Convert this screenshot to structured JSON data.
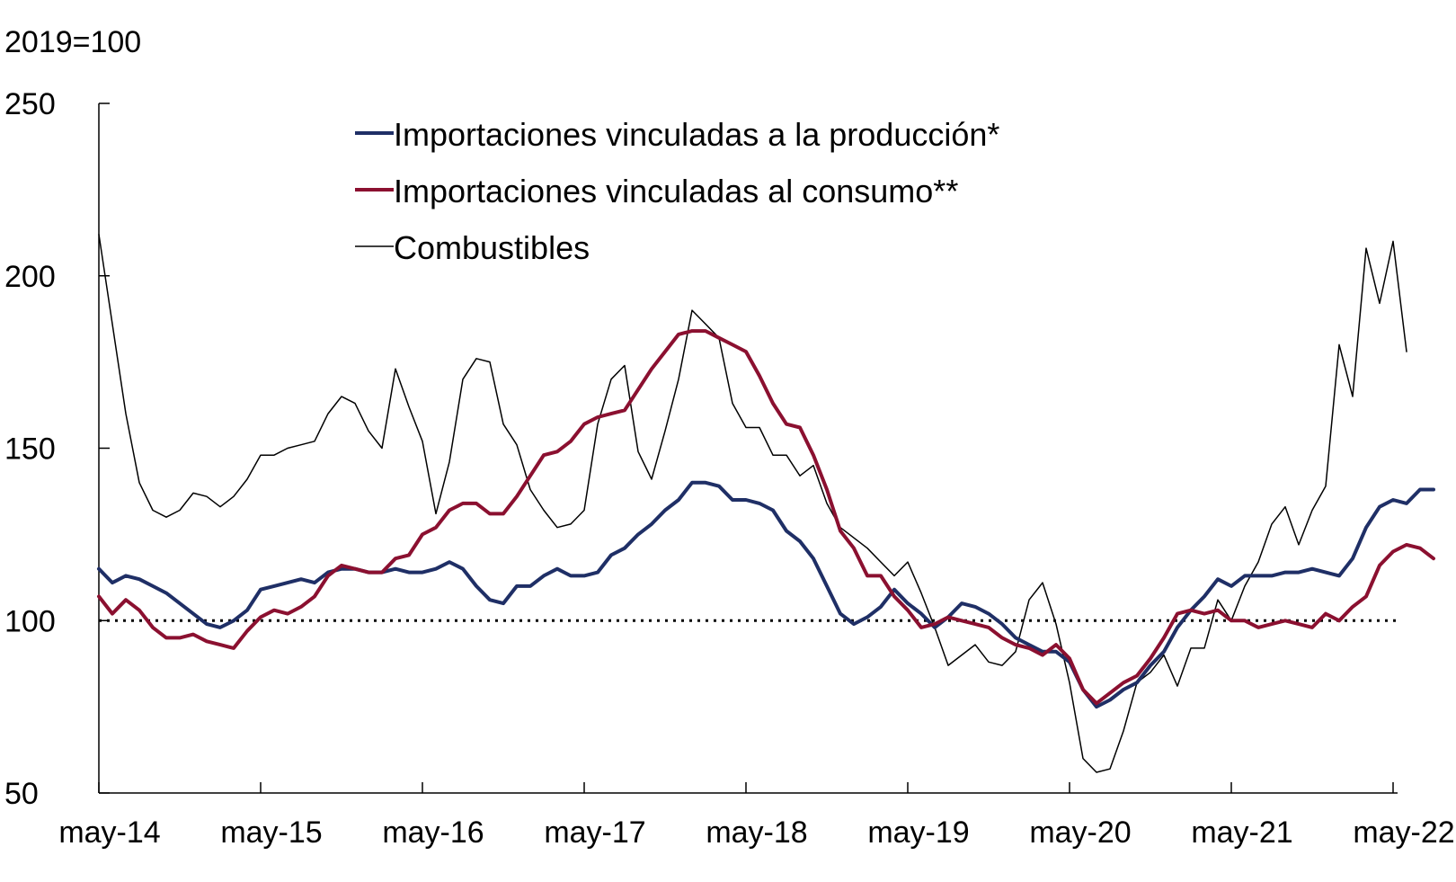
{
  "chart_data": {
    "type": "line",
    "unit_label": "2019=100",
    "ylim": [
      50,
      250
    ],
    "yticks": [
      50,
      100,
      150,
      200,
      250
    ],
    "x_start": "2014-05",
    "x_end": "2022-05",
    "xticks": [
      "may-14",
      "may-15",
      "may-16",
      "may-17",
      "may-18",
      "may-19",
      "may-20",
      "may-21",
      "may-22"
    ],
    "reference_line": {
      "value": 100,
      "style": "dotted"
    },
    "grid": false,
    "legend_placement": "top-center",
    "series": [
      {
        "name": "Importaciones vinculadas a la producción*",
        "color": "#1f2f66",
        "points": [
          [
            "2014-05",
            115
          ],
          [
            "2014-06",
            111
          ],
          [
            "2014-07",
            113
          ],
          [
            "2014-08",
            112
          ],
          [
            "2014-09",
            110
          ],
          [
            "2014-10",
            108
          ],
          [
            "2014-11",
            105
          ],
          [
            "2014-12",
            102
          ],
          [
            "2015-01",
            99
          ],
          [
            "2015-02",
            98
          ],
          [
            "2015-03",
            100
          ],
          [
            "2015-04",
            103
          ],
          [
            "2015-05",
            109
          ],
          [
            "2015-06",
            110
          ],
          [
            "2015-07",
            111
          ],
          [
            "2015-08",
            112
          ],
          [
            "2015-09",
            111
          ],
          [
            "2015-10",
            114
          ],
          [
            "2015-11",
            115
          ],
          [
            "2015-12",
            115
          ],
          [
            "2016-01",
            114
          ],
          [
            "2016-02",
            114
          ],
          [
            "2016-03",
            115
          ],
          [
            "2016-04",
            114
          ],
          [
            "2016-05",
            114
          ],
          [
            "2016-06",
            115
          ],
          [
            "2016-07",
            117
          ],
          [
            "2016-08",
            115
          ],
          [
            "2016-09",
            110
          ],
          [
            "2016-10",
            106
          ],
          [
            "2016-11",
            105
          ],
          [
            "2016-12",
            110
          ],
          [
            "2017-01",
            110
          ],
          [
            "2017-02",
            113
          ],
          [
            "2017-03",
            115
          ],
          [
            "2017-04",
            113
          ],
          [
            "2017-05",
            113
          ],
          [
            "2017-06",
            114
          ],
          [
            "2017-07",
            119
          ],
          [
            "2017-08",
            121
          ],
          [
            "2017-09",
            125
          ],
          [
            "2017-10",
            128
          ],
          [
            "2017-11",
            132
          ],
          [
            "2017-12",
            135
          ],
          [
            "2018-01",
            140
          ],
          [
            "2018-02",
            140
          ],
          [
            "2018-03",
            139
          ],
          [
            "2018-04",
            135
          ],
          [
            "2018-05",
            135
          ],
          [
            "2018-06",
            134
          ],
          [
            "2018-07",
            132
          ],
          [
            "2018-08",
            126
          ],
          [
            "2018-09",
            123
          ],
          [
            "2018-10",
            118
          ],
          [
            "2018-11",
            110
          ],
          [
            "2018-12",
            102
          ],
          [
            "2019-01",
            99
          ],
          [
            "2019-02",
            101
          ],
          [
            "2019-03",
            104
          ],
          [
            "2019-04",
            109
          ],
          [
            "2019-05",
            105
          ],
          [
            "2019-06",
            102
          ],
          [
            "2019-07",
            98
          ],
          [
            "2019-08",
            101
          ],
          [
            "2019-09",
            105
          ],
          [
            "2019-10",
            104
          ],
          [
            "2019-11",
            102
          ],
          [
            "2019-12",
            99
          ],
          [
            "2020-01",
            95
          ],
          [
            "2020-02",
            93
          ],
          [
            "2020-03",
            91
          ],
          [
            "2020-04",
            91
          ],
          [
            "2020-05",
            88
          ],
          [
            "2020-06",
            80
          ],
          [
            "2020-07",
            75
          ],
          [
            "2020-08",
            77
          ],
          [
            "2020-09",
            80
          ],
          [
            "2020-10",
            82
          ],
          [
            "2020-11",
            87
          ],
          [
            "2020-12",
            91
          ],
          [
            "2021-01",
            98
          ],
          [
            "2021-02",
            103
          ],
          [
            "2021-03",
            107
          ],
          [
            "2021-04",
            112
          ],
          [
            "2021-05",
            110
          ],
          [
            "2021-06",
            113
          ],
          [
            "2021-07",
            113
          ],
          [
            "2021-08",
            113
          ],
          [
            "2021-09",
            114
          ],
          [
            "2021-10",
            114
          ],
          [
            "2021-11",
            115
          ],
          [
            "2021-12",
            114
          ],
          [
            "2022-01",
            113
          ],
          [
            "2022-02",
            118
          ],
          [
            "2022-03",
            127
          ],
          [
            "2022-04",
            133
          ],
          [
            "2022-05",
            135
          ],
          [
            "2022-06",
            134
          ],
          [
            "2022-07",
            138
          ],
          [
            "2022-08",
            138
          ]
        ]
      },
      {
        "name": "Importaciones vinculadas al consumo**",
        "color": "#8b1030",
        "points": [
          [
            "2014-05",
            107
          ],
          [
            "2014-06",
            102
          ],
          [
            "2014-07",
            106
          ],
          [
            "2014-08",
            103
          ],
          [
            "2014-09",
            98
          ],
          [
            "2014-10",
            95
          ],
          [
            "2014-11",
            95
          ],
          [
            "2014-12",
            96
          ],
          [
            "2015-01",
            94
          ],
          [
            "2015-02",
            93
          ],
          [
            "2015-03",
            92
          ],
          [
            "2015-04",
            97
          ],
          [
            "2015-05",
            101
          ],
          [
            "2015-06",
            103
          ],
          [
            "2015-07",
            102
          ],
          [
            "2015-08",
            104
          ],
          [
            "2015-09",
            107
          ],
          [
            "2015-10",
            113
          ],
          [
            "2015-11",
            116
          ],
          [
            "2015-12",
            115
          ],
          [
            "2016-01",
            114
          ],
          [
            "2016-02",
            114
          ],
          [
            "2016-03",
            118
          ],
          [
            "2016-04",
            119
          ],
          [
            "2016-05",
            125
          ],
          [
            "2016-06",
            127
          ],
          [
            "2016-07",
            132
          ],
          [
            "2016-08",
            134
          ],
          [
            "2016-09",
            134
          ],
          [
            "2016-10",
            131
          ],
          [
            "2016-11",
            131
          ],
          [
            "2016-12",
            136
          ],
          [
            "2017-01",
            142
          ],
          [
            "2017-02",
            148
          ],
          [
            "2017-03",
            149
          ],
          [
            "2017-04",
            152
          ],
          [
            "2017-05",
            157
          ],
          [
            "2017-06",
            159
          ],
          [
            "2017-07",
            160
          ],
          [
            "2017-08",
            161
          ],
          [
            "2017-09",
            167
          ],
          [
            "2017-10",
            173
          ],
          [
            "2017-11",
            178
          ],
          [
            "2017-12",
            183
          ],
          [
            "2018-01",
            184
          ],
          [
            "2018-02",
            184
          ],
          [
            "2018-03",
            182
          ],
          [
            "2018-04",
            180
          ],
          [
            "2018-05",
            178
          ],
          [
            "2018-06",
            171
          ],
          [
            "2018-07",
            163
          ],
          [
            "2018-08",
            157
          ],
          [
            "2018-09",
            156
          ],
          [
            "2018-10",
            148
          ],
          [
            "2018-11",
            138
          ],
          [
            "2018-12",
            126
          ],
          [
            "2019-01",
            121
          ],
          [
            "2019-02",
            113
          ],
          [
            "2019-03",
            113
          ],
          [
            "2019-04",
            107
          ],
          [
            "2019-05",
            103
          ],
          [
            "2019-06",
            98
          ],
          [
            "2019-07",
            99
          ],
          [
            "2019-08",
            101
          ],
          [
            "2019-09",
            100
          ],
          [
            "2019-10",
            99
          ],
          [
            "2019-11",
            98
          ],
          [
            "2019-12",
            95
          ],
          [
            "2020-01",
            93
          ],
          [
            "2020-02",
            92
          ],
          [
            "2020-03",
            90
          ],
          [
            "2020-04",
            93
          ],
          [
            "2020-05",
            89
          ],
          [
            "2020-06",
            80
          ],
          [
            "2020-07",
            76
          ],
          [
            "2020-08",
            79
          ],
          [
            "2020-09",
            82
          ],
          [
            "2020-10",
            84
          ],
          [
            "2020-11",
            89
          ],
          [
            "2020-12",
            95
          ],
          [
            "2021-01",
            102
          ],
          [
            "2021-02",
            103
          ],
          [
            "2021-03",
            102
          ],
          [
            "2021-04",
            103
          ],
          [
            "2021-05",
            100
          ],
          [
            "2021-06",
            100
          ],
          [
            "2021-07",
            98
          ],
          [
            "2021-08",
            99
          ],
          [
            "2021-09",
            100
          ],
          [
            "2021-10",
            99
          ],
          [
            "2021-11",
            98
          ],
          [
            "2021-12",
            102
          ],
          [
            "2022-01",
            100
          ],
          [
            "2022-02",
            104
          ],
          [
            "2022-03",
            107
          ],
          [
            "2022-04",
            116
          ],
          [
            "2022-05",
            120
          ],
          [
            "2022-06",
            122
          ],
          [
            "2022-07",
            121
          ],
          [
            "2022-08",
            118
          ]
        ]
      },
      {
        "name": "Combustibles",
        "color": "#000000",
        "points": [
          [
            "2014-05",
            212
          ],
          [
            "2014-06",
            186
          ],
          [
            "2014-07",
            160
          ],
          [
            "2014-08",
            140
          ],
          [
            "2014-09",
            132
          ],
          [
            "2014-10",
            130
          ],
          [
            "2014-11",
            132
          ],
          [
            "2014-12",
            137
          ],
          [
            "2015-01",
            136
          ],
          [
            "2015-02",
            133
          ],
          [
            "2015-03",
            136
          ],
          [
            "2015-04",
            141
          ],
          [
            "2015-05",
            148
          ],
          [
            "2015-06",
            148
          ],
          [
            "2015-07",
            150
          ],
          [
            "2015-08",
            151
          ],
          [
            "2015-09",
            152
          ],
          [
            "2015-10",
            160
          ],
          [
            "2015-11",
            165
          ],
          [
            "2015-12",
            163
          ],
          [
            "2016-01",
            155
          ],
          [
            "2016-02",
            150
          ],
          [
            "2016-03",
            173
          ],
          [
            "2016-04",
            162
          ],
          [
            "2016-05",
            152
          ],
          [
            "2016-06",
            131
          ],
          [
            "2016-07",
            146
          ],
          [
            "2016-08",
            170
          ],
          [
            "2016-09",
            176
          ],
          [
            "2016-10",
            175
          ],
          [
            "2016-11",
            157
          ],
          [
            "2016-12",
            151
          ],
          [
            "2017-01",
            138
          ],
          [
            "2017-02",
            132
          ],
          [
            "2017-03",
            127
          ],
          [
            "2017-04",
            128
          ],
          [
            "2017-05",
            132
          ],
          [
            "2017-06",
            157
          ],
          [
            "2017-07",
            170
          ],
          [
            "2017-08",
            174
          ],
          [
            "2017-09",
            149
          ],
          [
            "2017-10",
            141
          ],
          [
            "2017-11",
            155
          ],
          [
            "2017-12",
            170
          ],
          [
            "2018-01",
            190
          ],
          [
            "2018-02",
            186
          ],
          [
            "2018-03",
            182
          ],
          [
            "2018-04",
            163
          ],
          [
            "2018-05",
            156
          ],
          [
            "2018-06",
            156
          ],
          [
            "2018-07",
            148
          ],
          [
            "2018-08",
            148
          ],
          [
            "2018-09",
            142
          ],
          [
            "2018-10",
            145
          ],
          [
            "2018-11",
            134
          ],
          [
            "2018-12",
            127
          ],
          [
            "2019-01",
            124
          ],
          [
            "2019-02",
            121
          ],
          [
            "2019-03",
            117
          ],
          [
            "2019-04",
            113
          ],
          [
            "2019-05",
            117
          ],
          [
            "2019-06",
            108
          ],
          [
            "2019-07",
            98
          ],
          [
            "2019-08",
            87
          ],
          [
            "2019-09",
            90
          ],
          [
            "2019-10",
            93
          ],
          [
            "2019-11",
            88
          ],
          [
            "2019-12",
            87
          ],
          [
            "2020-01",
            91
          ],
          [
            "2020-02",
            106
          ],
          [
            "2020-03",
            111
          ],
          [
            "2020-04",
            99
          ],
          [
            "2020-05",
            82
          ],
          [
            "2020-06",
            60
          ],
          [
            "2020-07",
            56
          ],
          [
            "2020-08",
            57
          ],
          [
            "2020-09",
            68
          ],
          [
            "2020-10",
            82
          ],
          [
            "2020-11",
            85
          ],
          [
            "2020-12",
            90
          ],
          [
            "2021-01",
            81
          ],
          [
            "2021-02",
            92
          ],
          [
            "2021-03",
            92
          ],
          [
            "2021-04",
            106
          ],
          [
            "2021-05",
            100
          ],
          [
            "2021-06",
            110
          ],
          [
            "2021-07",
            117
          ],
          [
            "2021-08",
            128
          ],
          [
            "2021-09",
            133
          ],
          [
            "2021-10",
            122
          ],
          [
            "2021-11",
            132
          ],
          [
            "2021-12",
            139
          ],
          [
            "2022-01",
            180
          ],
          [
            "2022-02",
            165
          ],
          [
            "2022-03",
            208
          ],
          [
            "2022-04",
            192
          ],
          [
            "2022-05",
            210
          ],
          [
            "2022-06",
            178
          ]
        ]
      }
    ]
  }
}
